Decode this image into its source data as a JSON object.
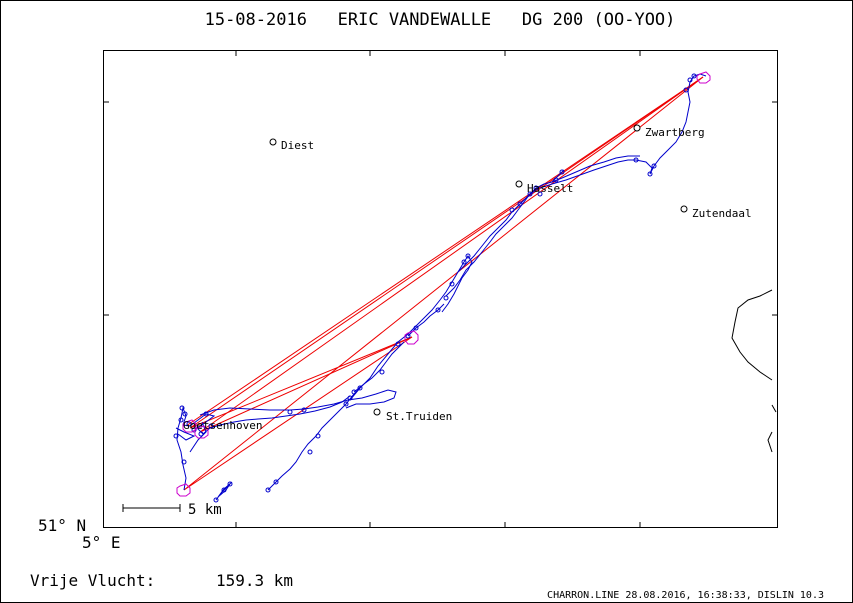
{
  "header": {
    "title": "15-08-2016   ERIC VANDEWALLE   DG 200 (OO-YOO)"
  },
  "axes": {
    "lat_label": "51° N",
    "lon_label": "5° E"
  },
  "scale_bar": {
    "label": "5 km"
  },
  "towns": [
    {
      "name": "Diest"
    },
    {
      "name": "Zwartberg"
    },
    {
      "name": "Hasselt"
    },
    {
      "name": "Zutendaal"
    },
    {
      "name": "St.Truiden"
    },
    {
      "name": "Goetsenhoven"
    }
  ],
  "footer": {
    "flight_label": "Vrije Vlucht:",
    "flight_distance": "159.3 km",
    "credit": "CHARRON.LINE 28.08.2016, 16:38:33, DISLIN 10.3"
  },
  "colors": {
    "track": "#0000cc",
    "task_legs": "#ee0000",
    "turnpoints": "#cc00cc",
    "frame": "#000000"
  }
}
